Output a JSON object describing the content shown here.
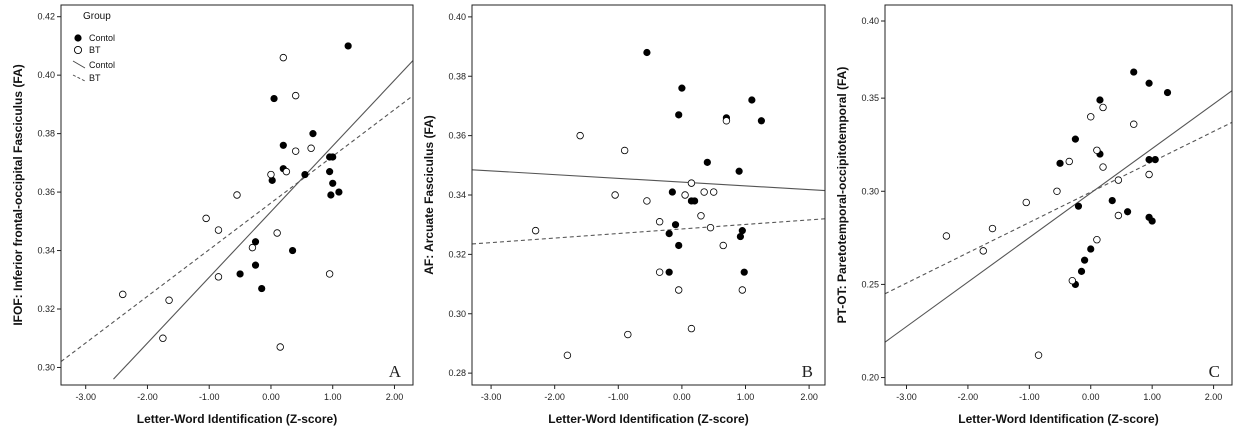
{
  "figure": {
    "legend": {
      "title": "Group",
      "items": [
        "Contol",
        "BT",
        "Contol",
        "BT"
      ]
    }
  },
  "chart_data": [
    {
      "type": "scatter",
      "panel_label": "A",
      "xlabel": "Letter-Word Identification (Z-score)",
      "ylabel": "IFOF: Inferior frontal-occipital Fasciculus (FA)",
      "xlim": [
        -3.4,
        2.3
      ],
      "ylim": [
        0.294,
        0.424
      ],
      "xticks": [
        -3,
        -2,
        -1,
        0,
        1,
        2
      ],
      "xtick_labels": [
        "-3.00",
        "-2.00",
        "-1.00",
        "0.00",
        "1.00",
        "2.00"
      ],
      "yticks": [
        0.3,
        0.32,
        0.34,
        0.36,
        0.38,
        0.4,
        0.42
      ],
      "ytick_labels": [
        "0.30",
        "0.32",
        "0.34",
        "0.36",
        "0.38",
        "0.40",
        "0.42"
      ],
      "series": [
        {
          "name": "Contol",
          "marker": "filled",
          "x": [
            1.25,
            0.05,
            0.68,
            0.2,
            0.95,
            0.55,
            0.02,
            0.95,
            1.0,
            0.97,
            1.1,
            1.0,
            0.2,
            -0.25,
            -0.5,
            -0.25,
            -0.15,
            0.35
          ],
          "y": [
            0.41,
            0.392,
            0.38,
            0.376,
            0.372,
            0.366,
            0.364,
            0.367,
            0.363,
            0.359,
            0.36,
            0.372,
            0.368,
            0.343,
            0.332,
            0.335,
            0.327,
            0.34
          ]
        },
        {
          "name": "BT",
          "marker": "open",
          "x": [
            0.2,
            0.4,
            0.4,
            0.65,
            0.25,
            0.0,
            -0.55,
            -1.05,
            -0.85,
            -0.3,
            0.1,
            -0.85,
            -1.65,
            -2.4,
            -1.75,
            0.15,
            0.95
          ],
          "y": [
            0.406,
            0.393,
            0.374,
            0.375,
            0.367,
            0.366,
            0.359,
            0.351,
            0.347,
            0.341,
            0.346,
            0.331,
            0.323,
            0.325,
            0.31,
            0.307,
            0.332
          ]
        }
      ],
      "fit_lines": [
        {
          "name": "Contol",
          "style": "solid",
          "x": [
            -2.55,
            2.3
          ],
          "y": [
            0.296,
            0.405
          ]
        },
        {
          "name": "BT",
          "style": "dashed",
          "x": [
            -3.4,
            2.3
          ],
          "y": [
            0.302,
            0.393
          ]
        }
      ]
    },
    {
      "type": "scatter",
      "panel_label": "B",
      "xlabel": "Letter-Word Identification (Z-score)",
      "ylabel": "AF: Arcuate Fasciculus (FA)",
      "xlim": [
        -3.3,
        2.25
      ],
      "ylim": [
        0.276,
        0.404
      ],
      "xticks": [
        -3,
        -2,
        -1,
        0,
        1,
        2
      ],
      "xtick_labels": [
        "-3.00",
        "-2.00",
        "-1.00",
        "0.00",
        "1.00",
        "2.00"
      ],
      "yticks": [
        0.28,
        0.3,
        0.32,
        0.34,
        0.36,
        0.38,
        0.4
      ],
      "ytick_labels": [
        "0.28",
        "0.30",
        "0.32",
        "0.34",
        "0.36",
        "0.38",
        "0.40"
      ],
      "series": [
        {
          "name": "Contol",
          "marker": "filled",
          "x": [
            -0.55,
            0.0,
            1.1,
            1.25,
            0.7,
            -0.05,
            0.4,
            0.9,
            -0.15,
            0.15,
            0.2,
            -0.1,
            -0.2,
            -0.05,
            0.95,
            0.92,
            -0.2,
            0.98
          ],
          "y": [
            0.388,
            0.376,
            0.372,
            0.365,
            0.366,
            0.367,
            0.351,
            0.348,
            0.341,
            0.338,
            0.338,
            0.33,
            0.327,
            0.323,
            0.328,
            0.326,
            0.314,
            0.314
          ]
        },
        {
          "name": "BT",
          "marker": "open",
          "x": [
            -1.6,
            -0.9,
            0.7,
            -1.05,
            -0.55,
            0.15,
            0.35,
            0.05,
            0.5,
            -0.35,
            0.3,
            0.45,
            -0.35,
            0.65,
            -0.05,
            0.95,
            0.15,
            -0.85,
            -1.8,
            -2.3
          ],
          "y": [
            0.36,
            0.355,
            0.365,
            0.34,
            0.338,
            0.344,
            0.341,
            0.34,
            0.341,
            0.331,
            0.333,
            0.329,
            0.314,
            0.323,
            0.308,
            0.308,
            0.295,
            0.293,
            0.286,
            0.328
          ]
        }
      ],
      "fit_lines": [
        {
          "name": "Contol",
          "style": "solid",
          "x": [
            -3.3,
            2.25
          ],
          "y": [
            0.3485,
            0.3415
          ]
        },
        {
          "name": "BT",
          "style": "dashed",
          "x": [
            -3.3,
            2.25
          ],
          "y": [
            0.3235,
            0.332
          ]
        }
      ]
    },
    {
      "type": "scatter",
      "panel_label": "C",
      "xlabel": "Letter-Word Identification (Z-score)",
      "ylabel": "PT-OT: Paretotemporal-occipitotemporal (FA)",
      "xlim": [
        -3.35,
        2.3
      ],
      "ylim": [
        0.196,
        0.4
      ],
      "xticks": [
        -3,
        -2,
        -1,
        0,
        1,
        2
      ],
      "xtick_labels": [
        "-3.00",
        "-2.00",
        "-1.00",
        "0.00",
        "1.00",
        "2.00"
      ],
      "yticks": [
        0.2,
        0.25,
        0.3,
        0.35
      ],
      "ytick_labels": [
        "0.20",
        "0.25",
        "0.30",
        "0.35"
      ],
      "yticks_top_label": "0.40",
      "series": [
        {
          "name": "Contol",
          "marker": "filled",
          "x": [
            0.7,
            0.95,
            1.25,
            0.15,
            -0.25,
            0.15,
            -0.5,
            0.95,
            1.05,
            0.35,
            -0.2,
            0.95,
            1.0,
            0.6,
            0.0,
            -0.1,
            -0.15,
            -0.25
          ],
          "y": [
            0.364,
            0.358,
            0.353,
            0.349,
            0.328,
            0.32,
            0.315,
            0.317,
            0.317,
            0.295,
            0.292,
            0.286,
            0.284,
            0.289,
            0.269,
            0.263,
            0.257,
            0.25
          ]
        },
        {
          "name": "BT",
          "marker": "open",
          "x": [
            0.2,
            0.0,
            0.7,
            0.1,
            0.2,
            -0.35,
            -0.55,
            0.45,
            0.95,
            -1.05,
            -1.6,
            -2.35,
            -1.75,
            0.1,
            0.45,
            -0.85,
            -0.3
          ],
          "y": [
            0.345,
            0.34,
            0.336,
            0.322,
            0.313,
            0.316,
            0.3,
            0.306,
            0.309,
            0.294,
            0.28,
            0.276,
            0.268,
            0.274,
            0.287,
            0.212,
            0.252
          ]
        }
      ],
      "fit_lines": [
        {
          "name": "Contol",
          "style": "solid",
          "x": [
            -3.35,
            2.3
          ],
          "y": [
            0.219,
            0.354
          ]
        },
        {
          "name": "BT",
          "style": "dashed",
          "x": [
            -3.35,
            2.3
          ],
          "y": [
            0.245,
            0.337
          ]
        }
      ]
    }
  ]
}
